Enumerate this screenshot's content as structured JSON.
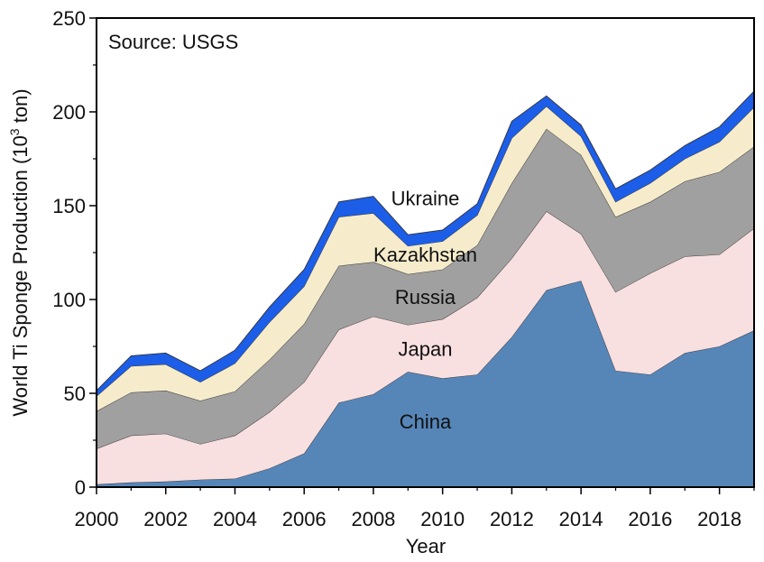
{
  "chart_data": {
    "type": "area",
    "stacked": true,
    "title": "",
    "annotation": "Source: USGS",
    "xlabel": "Year",
    "ylabel_main": "World Ti Sponge Production (10",
    "ylabel_sup": "3",
    "ylabel_tail": " ton)",
    "xlim": [
      2000,
      2019
    ],
    "ylim": [
      0,
      250
    ],
    "x_ticks": [
      "2000",
      "2002",
      "2004",
      "2006",
      "2008",
      "2010",
      "2012",
      "2014",
      "2016",
      "2018"
    ],
    "y_ticks": [
      "0",
      "50",
      "100",
      "150",
      "200",
      "250"
    ],
    "x": [
      2000,
      2001,
      2002,
      2003,
      2004,
      2005,
      2006,
      2007,
      2008,
      2009,
      2010,
      2011,
      2012,
      2013,
      2014,
      2015,
      2016,
      2017,
      2018,
      2019
    ],
    "series": [
      {
        "name": "China",
        "color": "#5686b8",
        "values": [
          1.5,
          2.5,
          3,
          4,
          4.5,
          10,
          18,
          45,
          49.5,
          61.5,
          58,
          60,
          80,
          105,
          110,
          62,
          60,
          71.5,
          75,
          83.5
        ]
      },
      {
        "name": "Japan",
        "color": "#f8dfe0",
        "values": [
          19,
          25,
          25.5,
          19,
          23,
          30,
          38,
          39,
          41.5,
          25,
          31.5,
          41,
          42,
          42,
          25,
          42,
          54,
          51.5,
          49,
          54.5
        ]
      },
      {
        "name": "Russia",
        "color": "#a0a0a0",
        "values": [
          20,
          23,
          23,
          23,
          23.5,
          28,
          31,
          34,
          29,
          27,
          26.5,
          28,
          40,
          44,
          42,
          40,
          38,
          40,
          44,
          43.5
        ]
      },
      {
        "name": "Kazakhstan",
        "color": "#f6eccb",
        "values": [
          8,
          14,
          14,
          10,
          15,
          20,
          20,
          26,
          26,
          15,
          15,
          16,
          24,
          12,
          10,
          8,
          10,
          12,
          16,
          21
        ]
      },
      {
        "name": "Ukraine",
        "color": "#1c5ee8",
        "values": [
          3,
          5.5,
          6,
          6,
          7,
          8,
          9,
          8,
          9,
          6,
          6,
          6,
          9,
          5.5,
          6,
          7,
          7,
          7,
          8,
          8.5
        ]
      }
    ],
    "series_labels_placement": "inside each band",
    "legend": "none",
    "grid": false
  }
}
